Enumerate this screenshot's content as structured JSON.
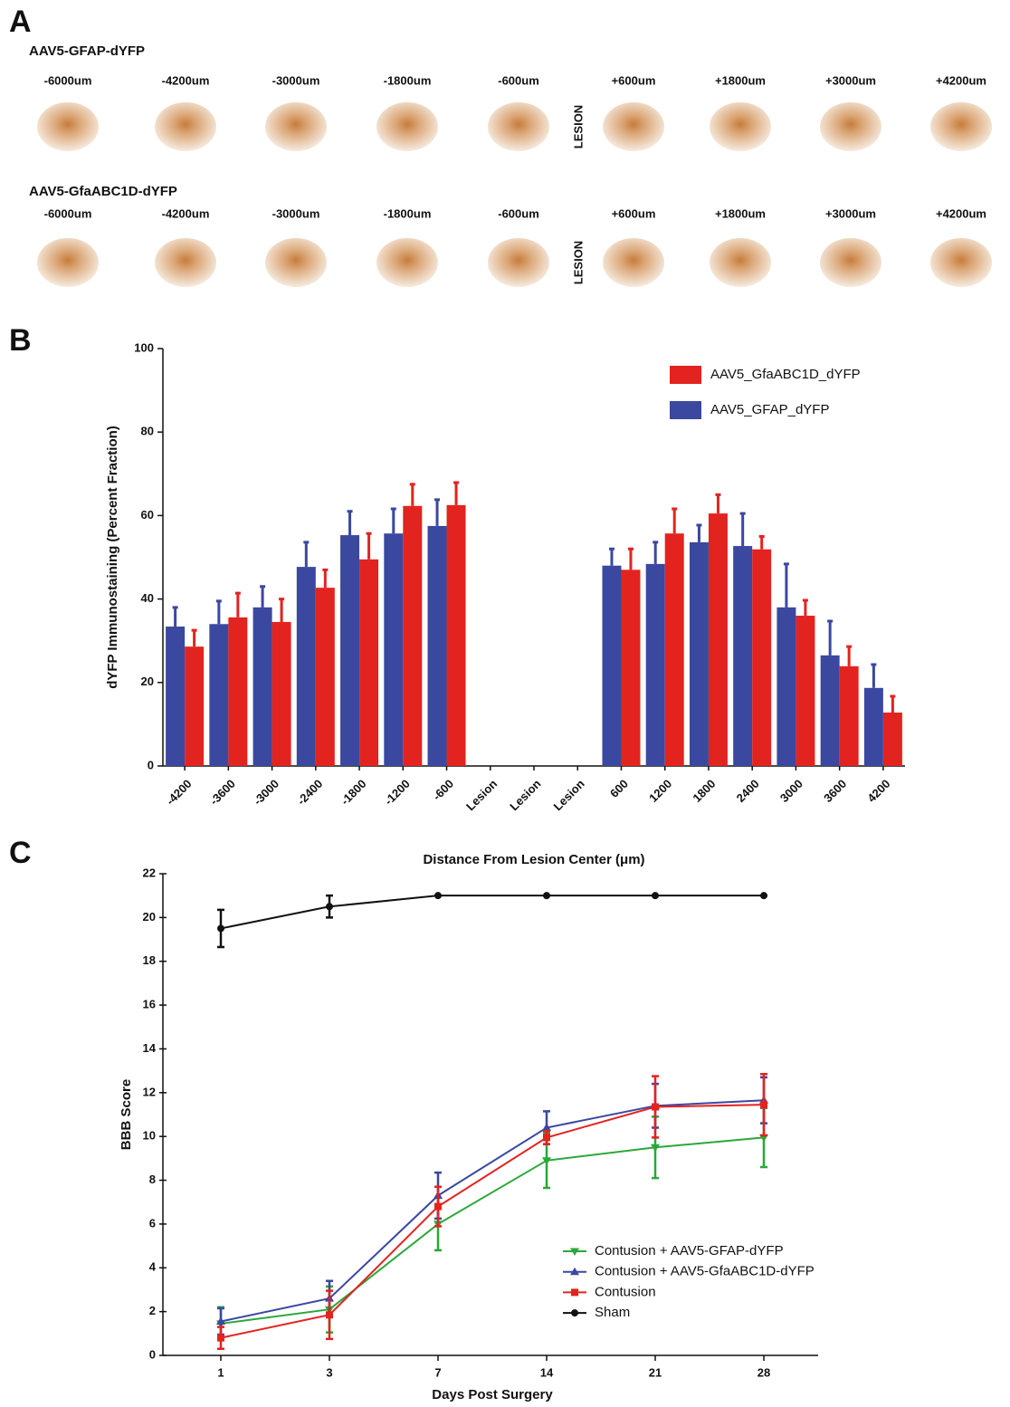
{
  "panel_labels": [
    "A",
    "B",
    "C"
  ],
  "panel_a": {
    "rows": [
      {
        "title": "AAV5-GFAP-dYFP",
        "positions": [
          "-6000um",
          "-4200um",
          "-3000um",
          "-1800um",
          "-600um",
          "+600um",
          "+1800um",
          "+3000um",
          "+4200um"
        ],
        "lesion_label": "LESION"
      },
      {
        "title": "AAV5-GfaABC1D-dYFP",
        "positions": [
          "-6000um",
          "-4200um",
          "-3000um",
          "-1800um",
          "-600um",
          "+600um",
          "+1800um",
          "+3000um",
          "+4200um"
        ],
        "lesion_label": "LESION"
      }
    ]
  },
  "chart_data": [
    {
      "type": "bar",
      "categories": [
        "-4200",
        "-3600",
        "-3000",
        "-2400",
        "-1800",
        "-1200",
        "-600",
        "Lesion",
        "Lesion",
        "Lesion",
        "600",
        "1200",
        "1800",
        "2400",
        "3000",
        "3600",
        "4200"
      ],
      "series": [
        {
          "name": "AAV5_GFAP_dYFP",
          "color": "#3a48a0",
          "values": [
            33.4,
            34,
            38,
            47.7,
            55.3,
            55.7,
            57.5,
            null,
            null,
            null,
            48,
            48.4,
            53.6,
            52.7,
            38,
            26.5,
            18.7
          ],
          "errors": [
            4.6,
            5.5,
            5,
            5.9,
            5.7,
            5.9,
            6.3,
            null,
            null,
            null,
            4,
            5.2,
            4.1,
            7.8,
            10.4,
            8.2,
            5.6
          ]
        },
        {
          "name": "AAV5_GfaABC1D_dYFP",
          "color": "#e3231f",
          "values": [
            28.6,
            35.6,
            34.5,
            42.7,
            49.5,
            62.3,
            62.5,
            null,
            null,
            null,
            47,
            55.7,
            60.5,
            51.9,
            36,
            23.9,
            12.8
          ],
          "errors": [
            3.9,
            5.8,
            5.5,
            4.3,
            6.2,
            5.2,
            5.4,
            null,
            null,
            null,
            5,
            5.9,
            4.5,
            3.1,
            3.7,
            4.7,
            3.9
          ]
        }
      ],
      "ylim": [
        0,
        100
      ],
      "yticks": [
        0,
        20,
        40,
        60,
        80,
        100
      ],
      "ylabel": "dYFP Immunostaining (Percent Fraction)",
      "xlabel": "Distance From Lesion Center (μm)"
    },
    {
      "type": "line",
      "categories": [
        1,
        3,
        7,
        14,
        21,
        28
      ],
      "series": [
        {
          "name": "Contusion + AAV5-GFAP-dYFP",
          "color": "#2aa83a",
          "marker": "triangle-down",
          "values": [
            1.45,
            2.1,
            6.0,
            8.9,
            9.5,
            9.95
          ],
          "errors": [
            0.75,
            1.05,
            1.2,
            1.25,
            1.4,
            1.35
          ]
        },
        {
          "name": "Contusion + AAV5-GfaABC1D-dYFP",
          "color": "#3a48a0",
          "marker": "triangle-up",
          "values": [
            1.55,
            2.6,
            7.3,
            10.4,
            11.4,
            11.65
          ],
          "errors": [
            0.6,
            0.8,
            1.05,
            0.75,
            1.0,
            1.05
          ]
        },
        {
          "name": "Contusion",
          "color": "#e3231f",
          "marker": "square",
          "values": [
            0.8,
            1.85,
            6.8,
            9.95,
            11.35,
            11.45
          ],
          "errors": [
            0.5,
            1.1,
            0.9,
            0.3,
            1.4,
            1.4
          ]
        },
        {
          "name": "Sham",
          "color": "#111111",
          "marker": "circle",
          "values": [
            19.5,
            20.5,
            21,
            21,
            21,
            21
          ],
          "errors": [
            0.85,
            0.5,
            0,
            0,
            0,
            0
          ]
        }
      ],
      "ylim": [
        0,
        22
      ],
      "yticks": [
        0,
        2,
        4,
        6,
        8,
        10,
        12,
        14,
        16,
        18,
        20,
        22
      ],
      "ylabel": "BBB Score",
      "xlabel": "Days Post Surgery"
    }
  ]
}
